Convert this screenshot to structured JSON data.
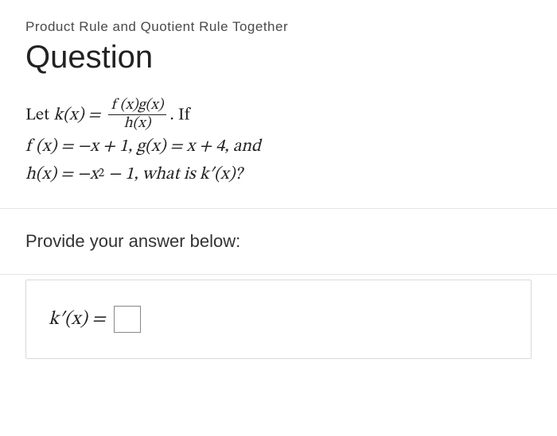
{
  "colors": {
    "text_primary": "#222222",
    "text_secondary": "#4a4a4a",
    "divider": "#e5e5e5",
    "box_border": "#d9d9d9",
    "input_border": "#888888",
    "background": "#ffffff"
  },
  "typography": {
    "body_font": "-apple-system, Segoe UI, Helvetica, Arial, sans-serif",
    "math_font": "Cambria Math, STIX Two Math, Times New Roman, serif",
    "topic_fontsize": 17,
    "heading_fontsize": 40,
    "math_fontsize": 22,
    "prompt_fontsize": 22,
    "answer_fontsize": 24
  },
  "topic": "Product Rule and Quotient Rule Together",
  "heading": "Question",
  "math": {
    "intro_prefix": "Let ",
    "k_of_x": "k(x) = ",
    "frac_num": "f (x)g(x)",
    "frac_den": "h(x)",
    "intro_suffix": ". If",
    "line2": "f (x) = −x + 1, g(x) = x + 4, and",
    "line3_part1": "h(x) = −x",
    "line3_exp": "2",
    "line3_part2": " − 1, what is k′(x)?"
  },
  "prompt": "Provide your answer below:",
  "answer_label": "k′(x) = "
}
